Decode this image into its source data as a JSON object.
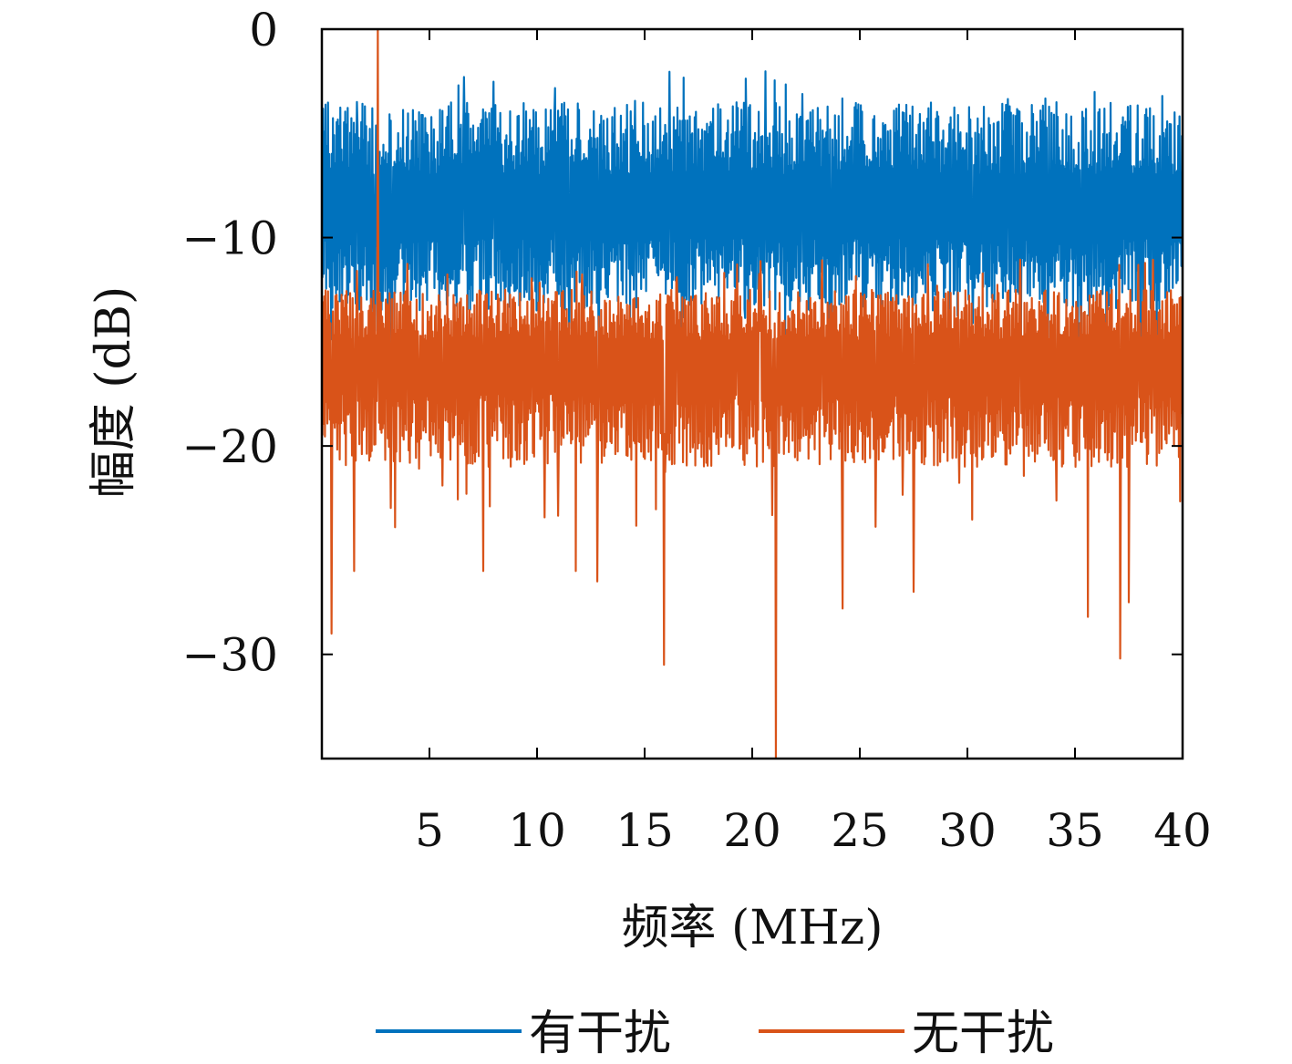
{
  "chart_data": {
    "type": "line",
    "title": "",
    "xlabel": "频率 (MHz)",
    "ylabel": "幅度 (dB)",
    "xlim": [
      0,
      40
    ],
    "ylim": [
      -35,
      0
    ],
    "xticks": [
      5,
      10,
      15,
      20,
      25,
      30,
      35,
      40
    ],
    "yticks": [
      0,
      -10,
      -20,
      -30
    ],
    "xtick_labels": [
      "5",
      "10",
      "15",
      "20",
      "25",
      "30",
      "35",
      "40"
    ],
    "ytick_labels": [
      "0",
      "−10",
      "−20",
      "−30"
    ],
    "grid": false,
    "legend_position": "bottom",
    "series": [
      {
        "name": "有干扰",
        "color": "#0072BD",
        "description_of_shape": "dense noise band",
        "level_top": -3.5,
        "level_mean": -8.5,
        "level_bottom": -13.5
      },
      {
        "name": "无干扰",
        "color": "#D95319",
        "description_of_shape": "dense noise band with isolated deep nulls and one peak",
        "level_top": -12.5,
        "level_mean": -16.0,
        "level_bottom": -21.0,
        "peak": {
          "x": 2.6,
          "y": 0
        },
        "nulls": [
          {
            "x": 0.45,
            "y": -29.0
          },
          {
            "x": 1.5,
            "y": -26.0
          },
          {
            "x": 7.5,
            "y": -26.0
          },
          {
            "x": 11.8,
            "y": -26.0
          },
          {
            "x": 12.8,
            "y": -26.5
          },
          {
            "x": 15.9,
            "y": -30.5
          },
          {
            "x": 21.1,
            "y": -35.0
          },
          {
            "x": 24.2,
            "y": -27.8
          },
          {
            "x": 27.5,
            "y": -27.0
          },
          {
            "x": 35.6,
            "y": -28.2
          },
          {
            "x": 37.1,
            "y": -30.2
          },
          {
            "x": 37.5,
            "y": -27.5
          }
        ]
      }
    ]
  },
  "legend": {
    "items": [
      {
        "label": "有干扰",
        "color": "#0072BD"
      },
      {
        "label": "无干扰",
        "color": "#D95319"
      }
    ]
  }
}
